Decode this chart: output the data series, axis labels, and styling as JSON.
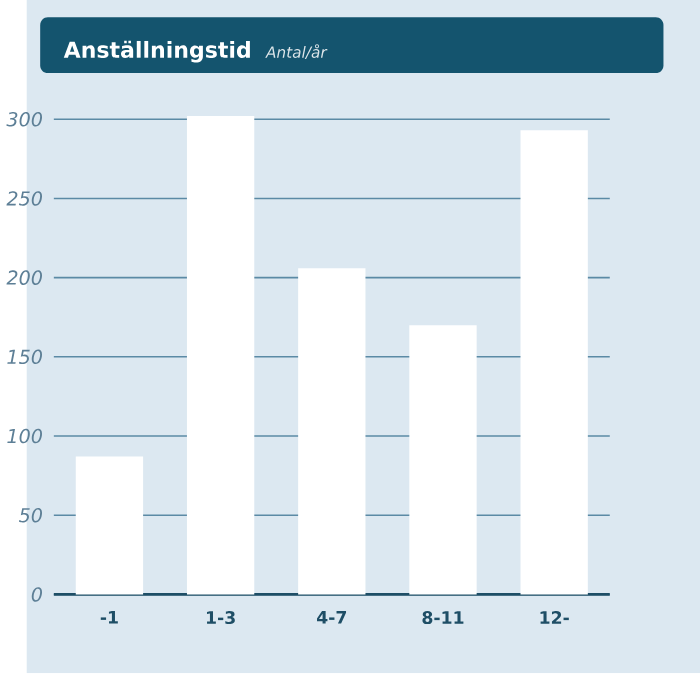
{
  "chart_data": {
    "type": "bar",
    "title": "Anställningstid",
    "subtitle": "Antal/år",
    "categories": [
      "-1",
      "1-3",
      "4-7",
      "8-11",
      "12-"
    ],
    "values": [
      87,
      302,
      206,
      170,
      293
    ],
    "color": "#ffffff",
    "ylim": [
      0,
      305
    ],
    "yticks": [
      0,
      50,
      100,
      150,
      200,
      250,
      300
    ],
    "grid": "y"
  }
}
